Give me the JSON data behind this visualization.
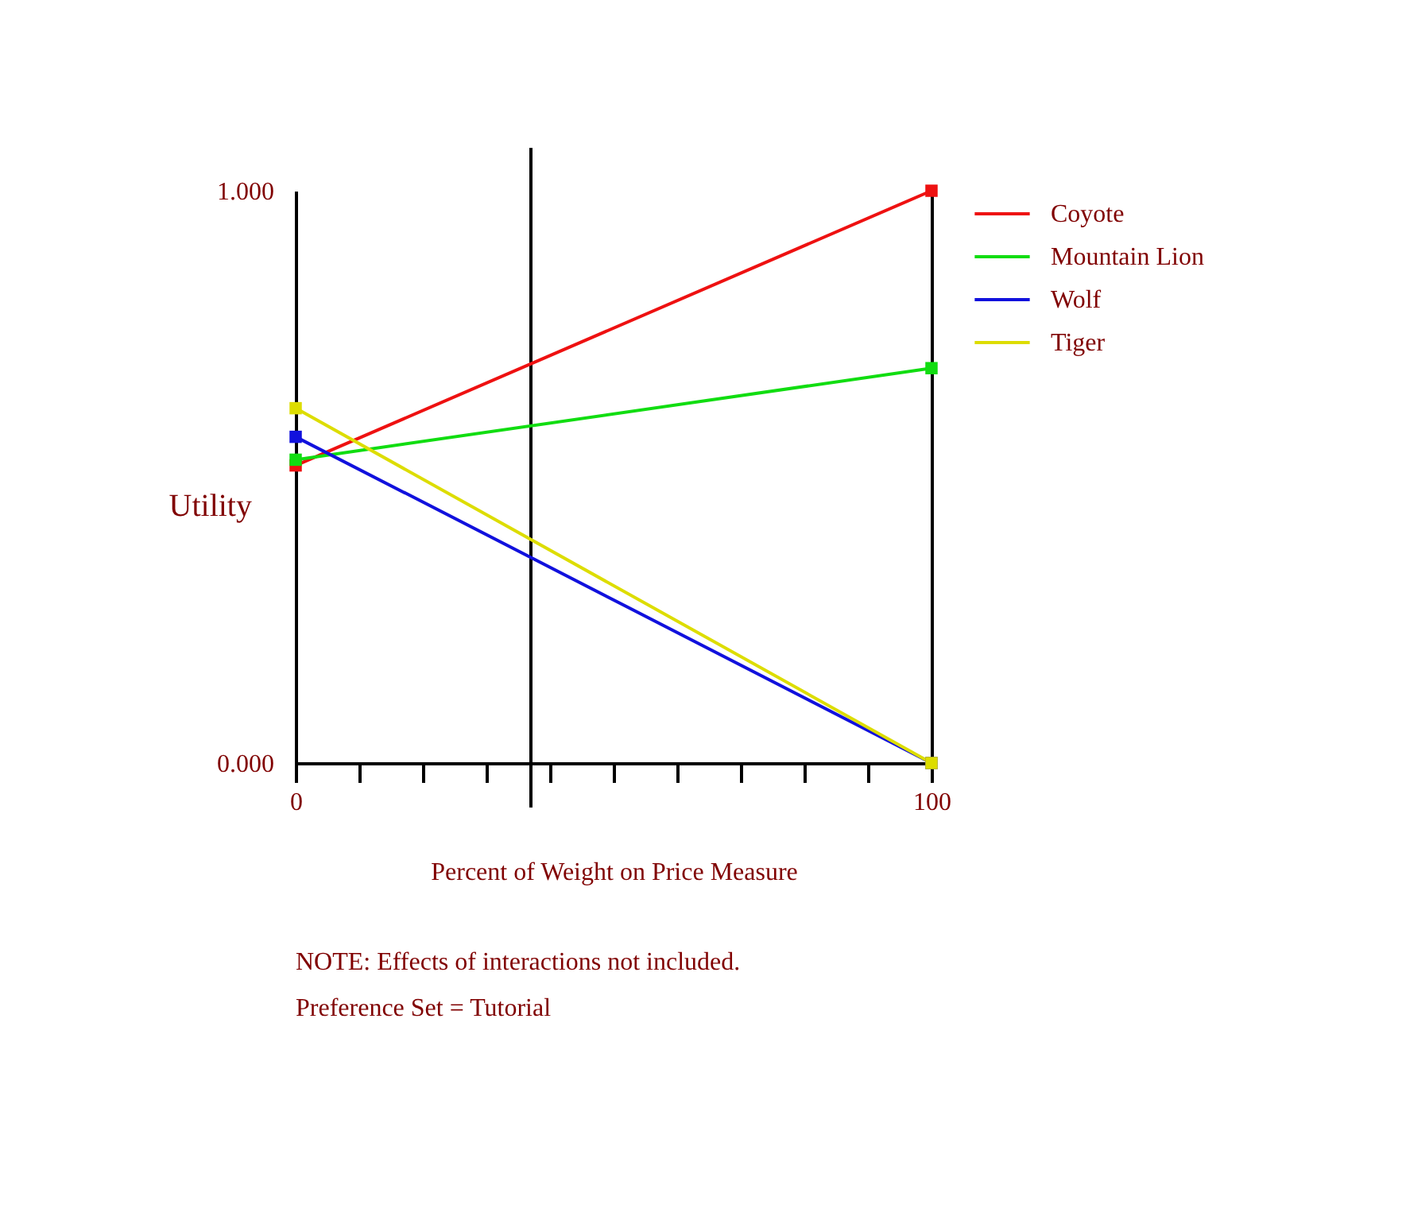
{
  "chart_data": {
    "type": "line",
    "xlabel": "Percent of Weight on Price Measure",
    "ylabel": "Utility",
    "x": [
      0,
      100
    ],
    "series": [
      {
        "name": "Coyote",
        "color": "#ee1111",
        "values": [
          0.52,
          1.0
        ]
      },
      {
        "name": "Mountain Lion",
        "color": "#11dd11",
        "values": [
          0.53,
          0.69
        ]
      },
      {
        "name": "Wolf",
        "color": "#1111dd",
        "values": [
          0.57,
          0
        ]
      },
      {
        "name": "Tiger",
        "color": "#dddd00",
        "values": [
          0.62,
          0
        ]
      }
    ],
    "xlim": [
      0,
      100
    ],
    "ylim": [
      0,
      1
    ],
    "xticks": [
      0,
      {
        "value": 10,
        "label": null
      },
      {
        "value": 20,
        "label": null
      },
      {
        "value": 30,
        "label": null
      },
      {
        "value": 40,
        "label": null
      },
      {
        "value": 50,
        "label": null
      },
      {
        "value": 60,
        "label": null
      },
      {
        "value": 70,
        "label": null
      },
      {
        "value": 80,
        "label": null
      },
      {
        "value": 90,
        "label": null
      },
      100
    ],
    "yticks": [
      {
        "value": 0,
        "label": "0.000"
      },
      {
        "value": 1,
        "label": "1.000"
      }
    ],
    "ref_lines": [
      {
        "axis": "x",
        "value": 37,
        "color": "#000000"
      }
    ],
    "annotations": [
      "NOTE: Effects of interactions not included.",
      "Preference Set = Tutorial"
    ],
    "legend": "top right",
    "marker": "square",
    "line_style": "solid",
    "grid": false
  }
}
